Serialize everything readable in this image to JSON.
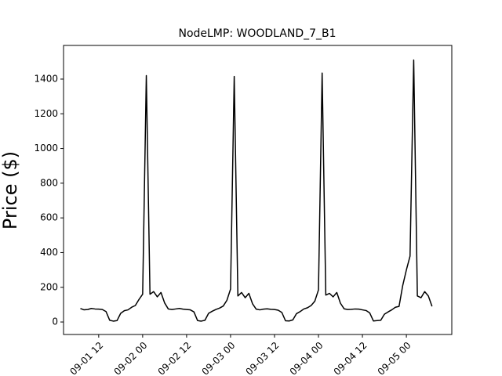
{
  "chart_data": {
    "type": "line",
    "title": "NodeLMP: WOODLAND_7_B1",
    "y_label": "Price ($)",
    "x": [
      "09-01 07",
      "09-01 08",
      "09-01 09",
      "09-01 10",
      "09-01 11",
      "09-01 12",
      "09-01 13",
      "09-01 14",
      "09-01 15",
      "09-01 16",
      "09-01 17",
      "09-01 18",
      "09-01 19",
      "09-01 20",
      "09-01 21",
      "09-01 22",
      "09-01 23",
      "09-02 00",
      "09-02 01",
      "09-02 02",
      "09-02 03",
      "09-02 04",
      "09-02 05",
      "09-02 06",
      "09-02 07",
      "09-02 08",
      "09-02 09",
      "09-02 10",
      "09-02 11",
      "09-02 12",
      "09-02 13",
      "09-02 14",
      "09-02 15",
      "09-02 16",
      "09-02 17",
      "09-02 18",
      "09-02 19",
      "09-02 20",
      "09-02 21",
      "09-02 22",
      "09-02 23",
      "09-03 00",
      "09-03 01",
      "09-03 02",
      "09-03 03",
      "09-03 04",
      "09-03 05",
      "09-03 06",
      "09-03 07",
      "09-03 08",
      "09-03 09",
      "09-03 10",
      "09-03 11",
      "09-03 12",
      "09-03 13",
      "09-03 14",
      "09-03 15",
      "09-03 16",
      "09-03 17",
      "09-03 18",
      "09-03 19",
      "09-03 20",
      "09-03 21",
      "09-03 22",
      "09-03 23",
      "09-04 00",
      "09-04 01",
      "09-04 02",
      "09-04 03",
      "09-04 04",
      "09-04 05",
      "09-04 06",
      "09-04 07",
      "09-04 08",
      "09-04 09",
      "09-04 10",
      "09-04 11",
      "09-04 12",
      "09-04 13",
      "09-04 14",
      "09-04 15",
      "09-04 16",
      "09-04 17",
      "09-04 18",
      "09-04 19",
      "09-04 20",
      "09-04 21",
      "09-04 22",
      "09-04 23",
      "09-05 00",
      "09-05 01",
      "09-05 02",
      "09-05 03",
      "09-05 04",
      "09-05 05",
      "09-05 06",
      "09-05 07"
    ],
    "series": [
      {
        "color": "#000000",
        "values": [
          78,
          70,
          72,
          78,
          75,
          74,
          72,
          60,
          10,
          5,
          8,
          50,
          65,
          70,
          85,
          95,
          130,
          160,
          1420,
          160,
          175,
          145,
          170,
          110,
          75,
          72,
          75,
          78,
          74,
          72,
          70,
          58,
          8,
          5,
          10,
          50,
          62,
          72,
          80,
          92,
          125,
          190,
          1415,
          150,
          170,
          140,
          165,
          105,
          74,
          70,
          74,
          76,
          73,
          72,
          68,
          55,
          7,
          6,
          12,
          48,
          60,
          75,
          82,
          95,
          120,
          185,
          1435,
          155,
          165,
          145,
          170,
          108,
          76,
          72,
          73,
          75,
          74,
          70,
          66,
          52,
          6,
          8,
          10,
          45,
          58,
          70,
          85,
          90,
          210,
          300,
          380,
          1510,
          150,
          140,
          175,
          150,
          90
        ]
      }
    ],
    "xlim": [
      "09-01 02:24",
      "09-05 12:24"
    ],
    "xticks": [
      "09-01 12",
      "09-02 00",
      "09-02 12",
      "09-03 00",
      "09-03 12",
      "09-04 00",
      "09-04 12",
      "09-05 00"
    ],
    "ylim": [
      -72,
      1594
    ],
    "yticks": [
      0,
      200,
      400,
      600,
      800,
      1000,
      1200,
      1400
    ]
  }
}
